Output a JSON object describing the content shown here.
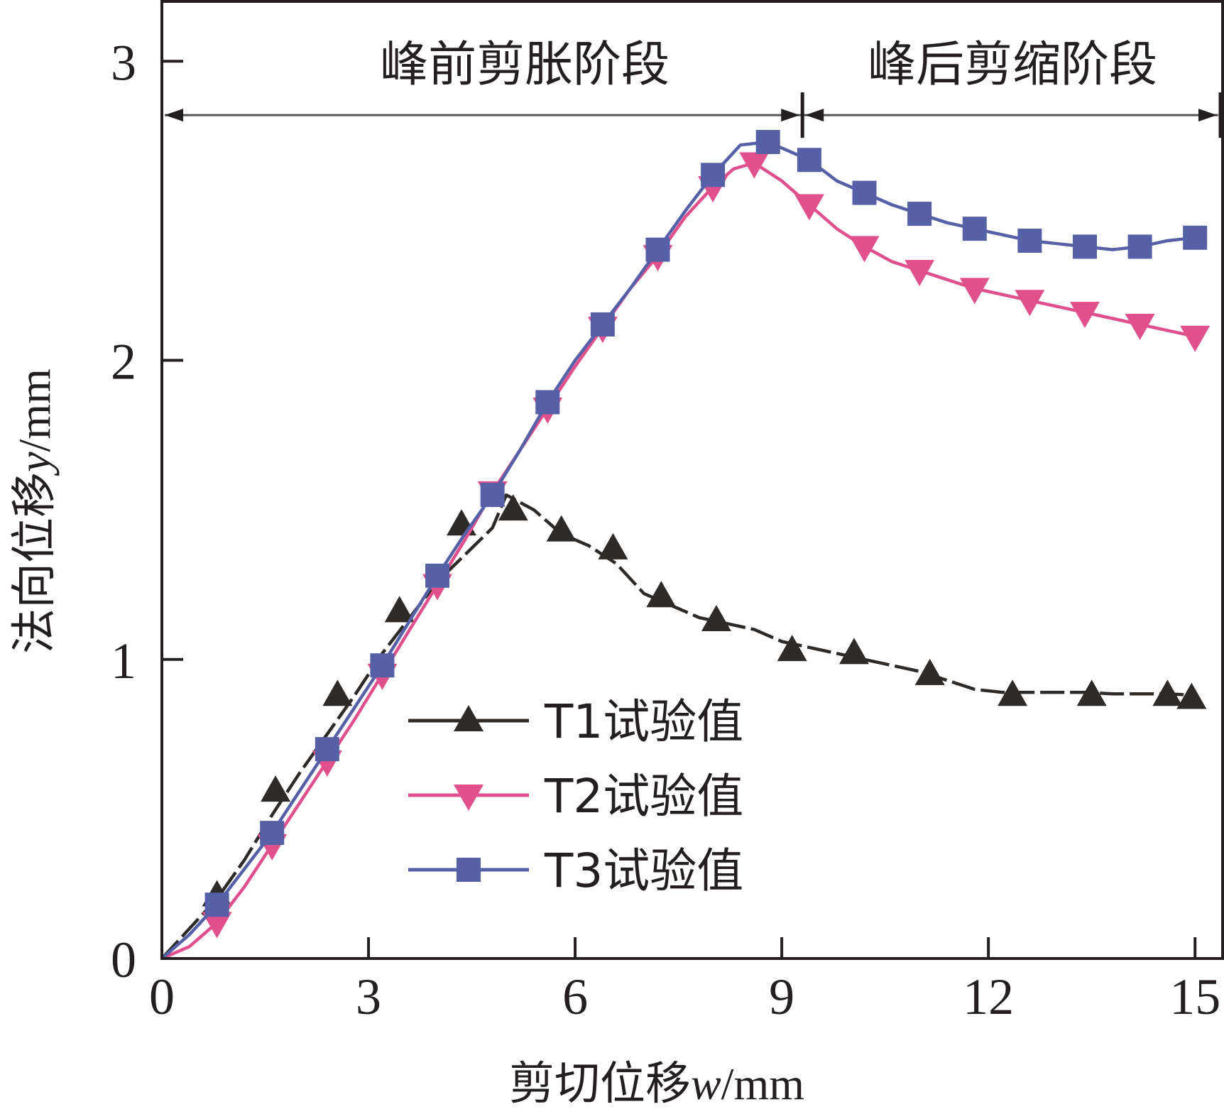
{
  "chart_data": {
    "type": "line",
    "title": "",
    "xlabel": {
      "prefix": "剪切位移",
      "var": "w",
      "unit": "/mm"
    },
    "ylabel": {
      "prefix": "法向位移",
      "var": "y",
      "unit": "/mm"
    },
    "xlim": [
      0,
      15.4
    ],
    "ylim": [
      0,
      3.2
    ],
    "xticks": [
      0,
      3,
      6,
      9,
      12,
      15
    ],
    "yticks": [
      0,
      1,
      2,
      3
    ],
    "phases": [
      {
        "label": "峰前剪胀阶段",
        "x_start": 0,
        "x_end": 9.3
      },
      {
        "label": "峰后剪缩阶段",
        "x_start": 9.3,
        "x_end": 15.4
      }
    ],
    "phase_line_y": 2.82,
    "legend_position": "center",
    "series": [
      {
        "name": "T1试验值",
        "color": "#2e2a27",
        "marker": "triangle-up",
        "dashed": true,
        "x": [
          0,
          0.4,
          0.8,
          1.2,
          1.6,
          2.0,
          2.4,
          2.8,
          3.2,
          3.6,
          4.0,
          4.4,
          4.8,
          5.0,
          5.4,
          5.8,
          6.2,
          6.6,
          7.0,
          7.4,
          7.8,
          8.2,
          8.6,
          9.0,
          9.4,
          9.8,
          10.2,
          10.6,
          11.0,
          11.4,
          11.8,
          12.2,
          12.6,
          13.0,
          13.4,
          13.8,
          14.2,
          14.6,
          15.0
        ],
        "y": [
          0.0,
          0.1,
          0.2,
          0.33,
          0.48,
          0.62,
          0.75,
          0.88,
          1.02,
          1.14,
          1.26,
          1.35,
          1.44,
          1.55,
          1.5,
          1.42,
          1.38,
          1.32,
          1.22,
          1.18,
          1.14,
          1.12,
          1.1,
          1.06,
          1.04,
          1.02,
          1.0,
          0.98,
          0.96,
          0.93,
          0.9,
          0.89,
          0.89,
          0.89,
          0.89,
          0.885,
          0.885,
          0.885,
          0.88
        ],
        "marker_x": [
          0.8,
          1.65,
          2.55,
          3.45,
          4.35,
          5.1,
          5.8,
          6.55,
          7.25,
          8.05,
          9.15,
          10.05,
          11.15,
          12.35,
          13.5,
          14.6,
          14.95
        ],
        "marker_y": [
          0.21,
          0.56,
          0.88,
          1.16,
          1.45,
          1.5,
          1.43,
          1.37,
          1.21,
          1.13,
          1.03,
          1.02,
          0.95,
          0.88,
          0.88,
          0.88,
          0.87
        ]
      },
      {
        "name": "T2试验值",
        "color": "#e0508d",
        "marker": "triangle-down",
        "dashed": false,
        "x": [
          0,
          0.4,
          0.8,
          1.2,
          1.6,
          2.0,
          2.4,
          2.8,
          3.2,
          3.6,
          4.0,
          4.4,
          4.8,
          5.2,
          5.6,
          6.0,
          6.4,
          6.8,
          7.2,
          7.6,
          8.0,
          8.3,
          8.6,
          9.0,
          9.4,
          9.8,
          10.2,
          10.6,
          11.0,
          11.4,
          11.8,
          12.2,
          12.6,
          13.0,
          13.4,
          13.8,
          14.2,
          14.6,
          15.0
        ],
        "y": [
          0.0,
          0.04,
          0.12,
          0.24,
          0.38,
          0.52,
          0.66,
          0.8,
          0.95,
          1.1,
          1.25,
          1.4,
          1.56,
          1.7,
          1.84,
          1.98,
          2.11,
          2.24,
          2.35,
          2.48,
          2.58,
          2.64,
          2.66,
          2.6,
          2.52,
          2.44,
          2.38,
          2.33,
          2.3,
          2.27,
          2.24,
          2.22,
          2.2,
          2.18,
          2.16,
          2.14,
          2.12,
          2.1,
          2.08
        ]
      },
      {
        "name": "T3试验值",
        "color": "#5560a6",
        "marker": "square",
        "dashed": false,
        "x": [
          0,
          0.4,
          0.8,
          1.2,
          1.6,
          2.0,
          2.4,
          2.8,
          3.2,
          3.6,
          4.0,
          4.4,
          4.8,
          5.2,
          5.6,
          6.0,
          6.4,
          6.8,
          7.2,
          7.6,
          8.0,
          8.4,
          8.8,
          9.0,
          9.4,
          9.8,
          10.2,
          10.6,
          11.0,
          11.4,
          11.8,
          12.2,
          12.6,
          13.0,
          13.4,
          13.8,
          14.2,
          14.6,
          15.0
        ],
        "y": [
          0.0,
          0.08,
          0.18,
          0.3,
          0.42,
          0.56,
          0.7,
          0.84,
          0.98,
          1.13,
          1.28,
          1.42,
          1.55,
          1.7,
          1.86,
          2.0,
          2.12,
          2.24,
          2.37,
          2.5,
          2.62,
          2.72,
          2.73,
          2.71,
          2.67,
          2.6,
          2.56,
          2.52,
          2.49,
          2.46,
          2.44,
          2.42,
          2.4,
          2.39,
          2.38,
          2.37,
          2.38,
          2.4,
          2.41
        ]
      }
    ]
  }
}
